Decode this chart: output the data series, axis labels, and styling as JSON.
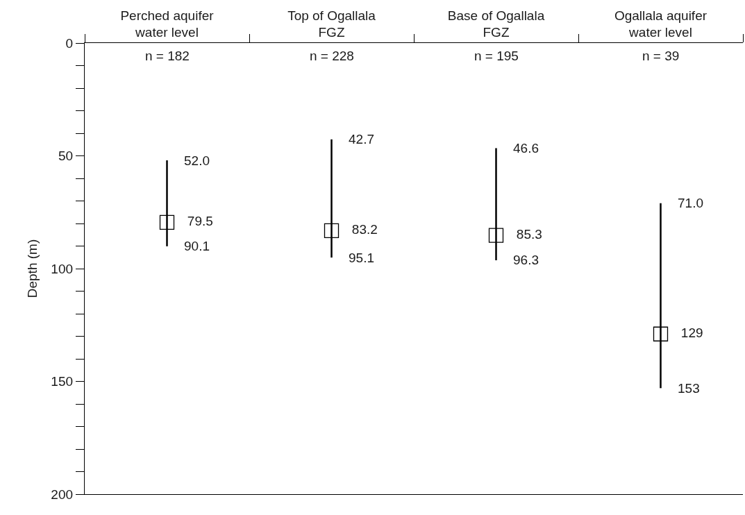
{
  "chart_data": {
    "type": "scatter",
    "ylabel": "Depth (m)",
    "categories": [
      "Perched aquifer\nwater level",
      "Top of Ogallala\nFGZ",
      "Base of Ogallala\nFGZ",
      "Ogallala aquifer\nwater level"
    ],
    "values": [
      79.5,
      83.2,
      85.3,
      129
    ],
    "errors": [
      [
        52.0,
        90.1
      ],
      [
        42.7,
        95.1
      ],
      [
        46.6,
        96.3
      ],
      [
        71.0,
        153
      ]
    ],
    "value_labels": [
      "79.5",
      "83.2",
      "85.3",
      "129"
    ],
    "color": "#000000",
    "marker": "square",
    "ylim": [
      200,
      0
    ],
    "yticks": [
      0,
      {
        "value": 10,
        "label": null
      },
      {
        "value": 20,
        "label": null
      },
      {
        "value": 30,
        "label": null
      },
      {
        "value": 40,
        "label": null
      },
      50,
      {
        "value": 60,
        "label": null
      },
      {
        "value": 70,
        "label": null
      },
      {
        "value": 80,
        "label": null
      },
      {
        "value": 90,
        "label": null
      },
      100,
      {
        "value": 110,
        "label": null
      },
      {
        "value": 120,
        "label": null
      },
      {
        "value": 130,
        "label": null
      },
      {
        "value": 140,
        "label": null
      },
      150,
      {
        "value": 160,
        "label": null
      },
      {
        "value": 170,
        "label": null
      },
      {
        "value": 180,
        "label": null
      },
      {
        "value": 190,
        "label": null
      },
      200
    ],
    "annotations": [
      "n = 182",
      "n = 228",
      "n = 195",
      "n = 39",
      {
        "text": "52.0",
        "x": "Perched aquifer\nwater level",
        "y": 52.0
      },
      {
        "text": "90.1",
        "x": "Perched aquifer\nwater level",
        "y": 90.1
      },
      {
        "text": "42.7",
        "x": "Top of Ogallala\nFGZ",
        "y": 42.7
      },
      {
        "text": "95.1",
        "x": "Top of Ogallala\nFGZ",
        "y": 95.1
      },
      {
        "text": "46.6",
        "x": "Base of Ogallala\nFGZ",
        "y": 46.6
      },
      {
        "text": "96.3",
        "x": "Base of Ogallala\nFGZ",
        "y": 96.3
      },
      {
        "text": "71.0",
        "x": "Ogallala aquifer\nwater level",
        "y": 71.0
      },
      {
        "text": "153",
        "x": "Ogallala aquifer\nwater level",
        "y": 153
      }
    ]
  }
}
